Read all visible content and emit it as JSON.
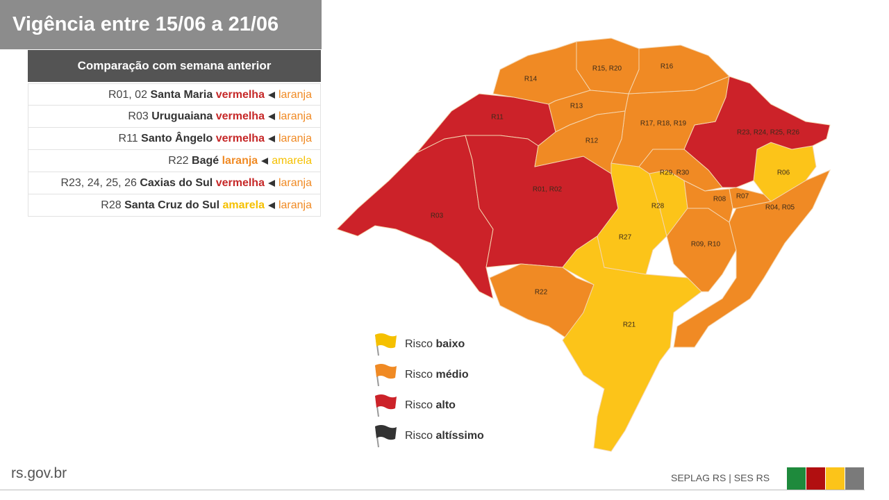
{
  "header": {
    "title": "Vigência entre 15/06 a 21/06"
  },
  "comparison": {
    "title": "Comparação com semana anterior",
    "rows": [
      {
        "code": "R01, 02",
        "name": "Santa Maria",
        "current": "vermelha",
        "current_color": "#c62828",
        "previous": "laranja",
        "previous_color": "#f08a24"
      },
      {
        "code": "R03",
        "name": "Uruguaiana",
        "current": "vermelha",
        "current_color": "#c62828",
        "previous": "laranja",
        "previous_color": "#f08a24"
      },
      {
        "code": "R11",
        "name": "Santo Ângelo",
        "current": "vermelha",
        "current_color": "#c62828",
        "previous": "laranja",
        "previous_color": "#f08a24"
      },
      {
        "code": "R22",
        "name": "Bagé",
        "current": "laranja",
        "current_color": "#f08a24",
        "previous": "amarela",
        "previous_color": "#f5c000"
      },
      {
        "code": "R23, 24, 25, 26",
        "name": "Caxias do Sul",
        "current": "vermelha",
        "current_color": "#c62828",
        "previous": "laranja",
        "previous_color": "#f08a24"
      },
      {
        "code": "R28",
        "name": "Santa Cruz do Sul",
        "current": "amarela",
        "current_color": "#f5c000",
        "previous": "laranja",
        "previous_color": "#f08a24"
      }
    ]
  },
  "map": {
    "regions": [
      {
        "label": "R03",
        "color": "#cc2229"
      },
      {
        "label": "R11",
        "color": "#cc2229"
      },
      {
        "label": "R01, R02",
        "color": "#cc2229"
      },
      {
        "label": "R22",
        "color": "#f08a24"
      },
      {
        "label": "R21",
        "color": "#fcc419"
      },
      {
        "label": "R27",
        "color": "#fcc419"
      },
      {
        "label": "R28",
        "color": "#fcc419"
      },
      {
        "label": "R09, R10",
        "color": "#f08a24"
      },
      {
        "label": "R04, R05",
        "color": "#f08a24"
      },
      {
        "label": "R08",
        "color": "#f08a24"
      },
      {
        "label": "R07",
        "color": "#f08a24"
      },
      {
        "label": "R06",
        "color": "#fcc419"
      },
      {
        "label": "R23, R24, R25, R26",
        "color": "#cc2229"
      },
      {
        "label": "R29, R30",
        "color": "#f08a24"
      },
      {
        "label": "R17, R18, R19",
        "color": "#f08a24"
      },
      {
        "label": "R16",
        "color": "#f08a24"
      },
      {
        "label": "R15, R20",
        "color": "#f08a24"
      },
      {
        "label": "R14",
        "color": "#f08a24"
      },
      {
        "label": "R13",
        "color": "#f08a24"
      },
      {
        "label": "R12",
        "color": "#f08a24"
      }
    ]
  },
  "legend": {
    "items": [
      {
        "prefix": "Risco",
        "level": "baixo",
        "color": "#f5c000"
      },
      {
        "prefix": "Risco",
        "level": "médio",
        "color": "#f08a24"
      },
      {
        "prefix": "Risco",
        "level": "alto",
        "color": "#cc2229"
      },
      {
        "prefix": "Risco",
        "level": "altíssimo",
        "color": "#333333"
      }
    ]
  },
  "footer": {
    "site": "rs.gov.br",
    "credits": "SEPLAG RS | SES RS"
  }
}
